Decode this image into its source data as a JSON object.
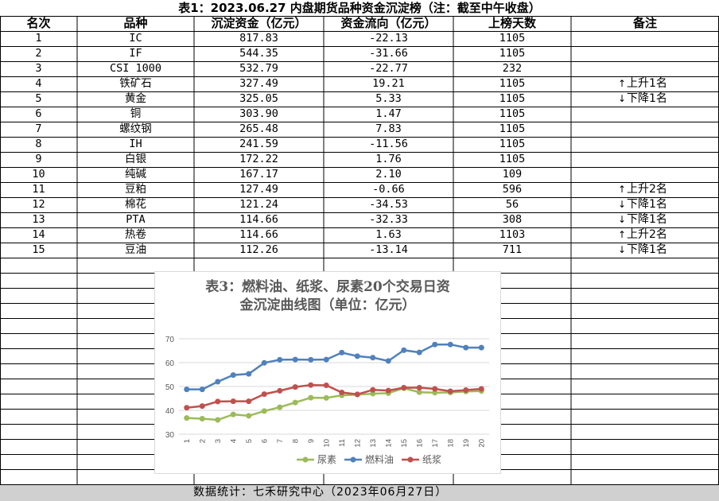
{
  "title": "表1：2023.06.27 内盘期货品种资金沉淀榜（注：截至中午收盘）",
  "headers": [
    "名次",
    "品种",
    "沉淀资金（亿元）",
    "资金流向（亿元）",
    "上榜天数",
    "备注"
  ],
  "rows": [
    {
      "rank": "1",
      "name": "IC",
      "fund": "817.83",
      "flow": "-22.13",
      "days": "1105",
      "note": "",
      "dir": ""
    },
    {
      "rank": "2",
      "name": "IF",
      "fund": "544.35",
      "flow": "-31.66",
      "days": "1105",
      "note": "",
      "dir": ""
    },
    {
      "rank": "3",
      "name": "CSI 1000",
      "fund": "532.79",
      "flow": "-22.77",
      "days": "232",
      "note": "",
      "dir": ""
    },
    {
      "rank": "4",
      "name": "铁矿石",
      "fund": "327.49",
      "flow": "19.21",
      "days": "1105",
      "note": "上升1名",
      "dir": "up"
    },
    {
      "rank": "5",
      "name": "黄金",
      "fund": "325.05",
      "flow": "5.33",
      "days": "1105",
      "note": "下降1名",
      "dir": "down"
    },
    {
      "rank": "6",
      "name": "铜",
      "fund": "303.90",
      "flow": "1.47",
      "days": "1105",
      "note": "",
      "dir": ""
    },
    {
      "rank": "7",
      "name": "螺纹钢",
      "fund": "265.48",
      "flow": "7.83",
      "days": "1105",
      "note": "",
      "dir": ""
    },
    {
      "rank": "8",
      "name": "IH",
      "fund": "241.59",
      "flow": "-11.56",
      "days": "1105",
      "note": "",
      "dir": ""
    },
    {
      "rank": "9",
      "name": "白银",
      "fund": "172.22",
      "flow": "1.76",
      "days": "1105",
      "note": "",
      "dir": ""
    },
    {
      "rank": "10",
      "name": "纯碱",
      "fund": "167.17",
      "flow": "2.10",
      "days": "109",
      "note": "",
      "dir": ""
    },
    {
      "rank": "11",
      "name": "豆粕",
      "fund": "127.49",
      "flow": "-0.66",
      "days": "596",
      "note": "上升2名",
      "dir": "up"
    },
    {
      "rank": "12",
      "name": "棉花",
      "fund": "121.24",
      "flow": "-34.53",
      "days": "56",
      "note": "下降1名",
      "dir": "down"
    },
    {
      "rank": "13",
      "name": "PTA",
      "fund": "114.66",
      "flow": "-32.33",
      "days": "308",
      "note": "下降1名",
      "dir": "down"
    },
    {
      "rank": "14",
      "name": "热卷",
      "fund": "114.66",
      "flow": "1.63",
      "days": "1103",
      "note": "上升2名",
      "dir": "up"
    },
    {
      "rank": "15",
      "name": "豆油",
      "fund": "112.26",
      "flow": "-13.14",
      "days": "711",
      "note": "下降1名",
      "dir": "down"
    }
  ],
  "footer": "数据统计：七禾研究中心（2023年06月27日）",
  "colors": {
    "urea": "#9bbb59",
    "fuel_oil": "#4f81bd",
    "pulp": "#c0504d",
    "footer_bg": "#d0d0d0"
  },
  "chart_data": {
    "type": "line",
    "title_line1": "表3：燃料油、纸浆、尿素20个交易日资",
    "title_line2": "金沉淀曲线图（单位：亿元）",
    "x": [
      1,
      2,
      3,
      4,
      5,
      6,
      7,
      8,
      9,
      10,
      11,
      12,
      13,
      14,
      15,
      16,
      17,
      18,
      19,
      20
    ],
    "x_tick_labels": [
      "1",
      "2",
      "3",
      "4",
      "5",
      "6",
      "7",
      "8",
      "9",
      "10",
      "11",
      "12",
      "13",
      "14",
      "15",
      "16",
      "17",
      "18",
      "19",
      "20"
    ],
    "ylim": [
      30,
      70
    ],
    "y_ticks": [
      30,
      40,
      50,
      60,
      70
    ],
    "y_tick_labels": [
      "30",
      "40",
      "50",
      "60",
      "70"
    ],
    "grid": true,
    "legend_position": "bottom",
    "series": [
      {
        "name": "尿素",
        "color": "#9bbb59",
        "values": [
          36.8,
          36.5,
          36.0,
          38.3,
          37.7,
          39.7,
          41.3,
          43.3,
          45.3,
          45.2,
          46.3,
          46.6,
          47.0,
          47.2,
          49.3,
          47.6,
          47.4,
          47.5,
          47.9,
          48.1
        ]
      },
      {
        "name": "燃料油",
        "color": "#4f81bd",
        "values": [
          48.8,
          48.8,
          52.0,
          54.8,
          55.3,
          59.9,
          61.2,
          61.3,
          61.2,
          61.3,
          64.2,
          62.7,
          62.1,
          60.7,
          65.2,
          64.3,
          67.6,
          67.6,
          66.3,
          66.3
        ]
      },
      {
        "name": "纸浆",
        "color": "#c0504d",
        "values": [
          41.1,
          41.8,
          43.7,
          43.8,
          43.8,
          46.8,
          48.2,
          49.8,
          50.6,
          50.5,
          47.5,
          46.7,
          48.6,
          48.3,
          49.5,
          49.5,
          49.0,
          48.0,
          48.5,
          49.0
        ]
      }
    ]
  }
}
